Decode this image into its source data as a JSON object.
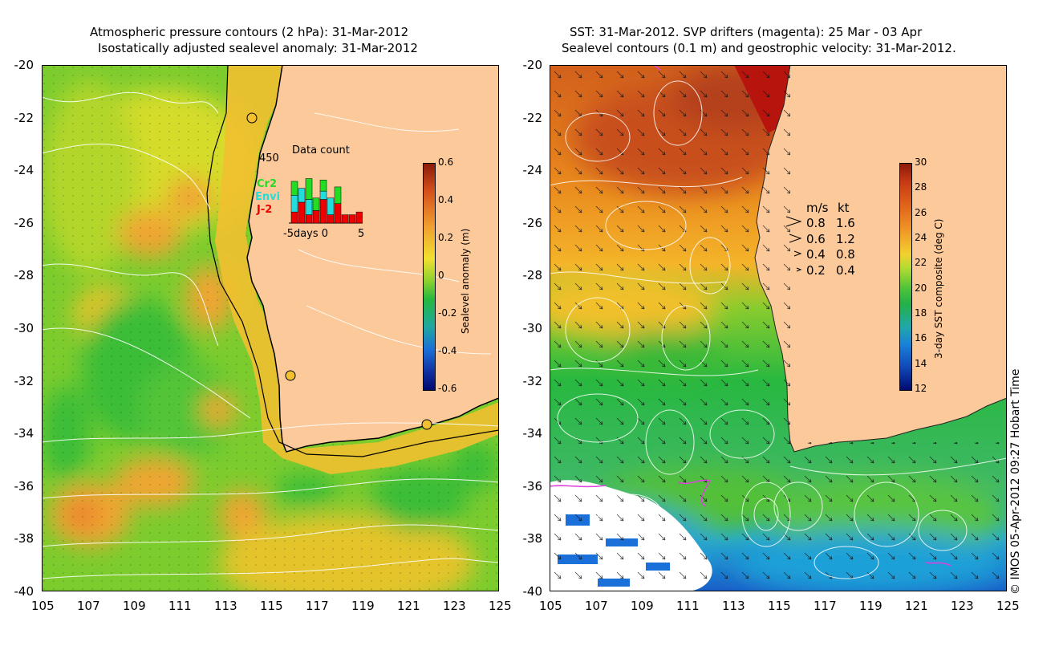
{
  "left_panel": {
    "title_line1": "Atmospheric pressure contours (2 hPa): 31-Mar-2012",
    "title_line2": "Isostatically adjusted sealevel anomaly: 31-Mar-2012",
    "y_ticks": [
      "-20",
      "-22",
      "-24",
      "-26",
      "-28",
      "-30",
      "-32",
      "-34",
      "-36",
      "-38",
      "-40"
    ],
    "x_ticks": [
      "105",
      "107",
      "109",
      "111",
      "113",
      "115",
      "117",
      "119",
      "121",
      "123",
      "125"
    ],
    "colorbar_label": "Sealevel anomaly (m)",
    "colorbar_ticks": [
      "0.6",
      "0.4",
      "0.2",
      "0",
      "-0.2",
      "-0.4",
      "-0.6"
    ],
    "inset": {
      "title": "Data count",
      "ymax_label": "450",
      "xlabel": "-5days 0",
      "xmax_label": "5",
      "missions": [
        {
          "name": "Cr2",
          "color": "#22dd22"
        },
        {
          "name": "Envi",
          "color": "#22dddd"
        },
        {
          "name": "J-2",
          "color": "#ee0000"
        }
      ],
      "bars": [
        {
          "day": -5,
          "j2": 80,
          "envi": 120,
          "cr2": 100
        },
        {
          "day": -4,
          "j2": 150,
          "envi": 100,
          "cr2": 0
        },
        {
          "day": -3,
          "j2": 60,
          "envi": 110,
          "cr2": 150
        },
        {
          "day": -2,
          "j2": 90,
          "envi": 0,
          "cr2": 90
        },
        {
          "day": -1,
          "j2": 170,
          "envi": 60,
          "cr2": 80
        },
        {
          "day": 0,
          "j2": 60,
          "envi": 120,
          "cr2": 0
        },
        {
          "day": 1,
          "j2": 140,
          "envi": 0,
          "cr2": 120
        },
        {
          "day": 2,
          "j2": 60,
          "envi": 0,
          "cr2": 0
        },
        {
          "day": 3,
          "j2": 60,
          "envi": 0,
          "cr2": 0
        },
        {
          "day": 4,
          "j2": 80,
          "envi": 0,
          "cr2": 0
        }
      ]
    }
  },
  "right_panel": {
    "title_line1": "SST: 31-Mar-2012. SVP drifters (magenta): 25 Mar - 03 Apr",
    "title_line2": "Sealevel contours (0.1 m) and geostrophic velocity: 31-Mar-2012.",
    "y_ticks": [
      "-20",
      "-22",
      "-24",
      "-26",
      "-28",
      "-30",
      "-32",
      "-34",
      "-36",
      "-38",
      "-40"
    ],
    "x_ticks": [
      "105",
      "107",
      "109",
      "111",
      "113",
      "115",
      "117",
      "119",
      "121",
      "123",
      "125"
    ],
    "colorbar_label": "3-day SST composite (deg C)",
    "colorbar_ticks": [
      "30",
      "28",
      "26",
      "24",
      "22",
      "20",
      "18",
      "16",
      "14",
      "12"
    ],
    "speed_legend": {
      "header_ms": "m/s",
      "header_kt": "kt",
      "rows": [
        {
          "ms": "0.8",
          "kt": "1.6"
        },
        {
          "ms": "0.6",
          "kt": "1.2"
        },
        {
          "ms": "0.4",
          "kt": "0.8"
        },
        {
          "ms": "0.2",
          "kt": "0.4"
        }
      ]
    }
  },
  "credit": "© IMOS 05-Apr-2012 09:27 Hobart Time",
  "colors": {
    "land": "#fbc99a",
    "coast_red": "#b8140e",
    "magenta": "#e040e0"
  }
}
